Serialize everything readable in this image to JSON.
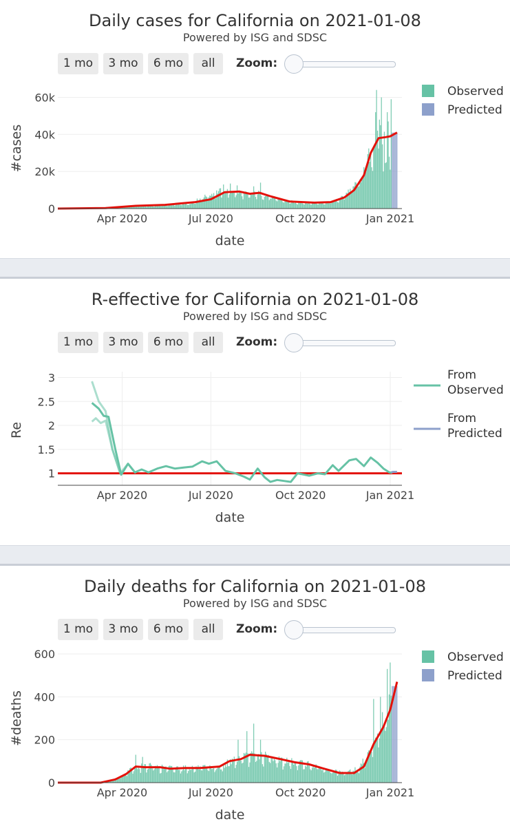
{
  "buttons": [
    "1 mo",
    "3 mo",
    "6 mo",
    "all"
  ],
  "zoom_label": "Zoom:",
  "colors": {
    "observed": "#66c2a5",
    "predicted": "#8da0cb",
    "trend": "#e3120b",
    "reference": "#e3120b"
  },
  "chart_data": [
    {
      "type": "bar",
      "title": "Daily cases for California on 2021-01-08",
      "subtitle": "Powered by ISG and SDSC",
      "xlabel": "date",
      "ylabel": "#cases",
      "xlim": [
        "2020-01-26",
        "2021-01-13"
      ],
      "ylim": [
        0,
        65000
      ],
      "x_ticks": [
        "2020-04-01",
        "2020-07-01",
        "2020-10-01",
        "2021-01-01"
      ],
      "x_tick_labels": [
        "Apr 2020",
        "Jul 2020",
        "Oct 2020",
        "Jan 2021"
      ],
      "y_ticks": [
        0,
        20000,
        40000,
        60000
      ],
      "y_tick_labels": [
        "0",
        "20k",
        "40k",
        "60k"
      ],
      "grid": true,
      "legend": {
        "placement": "top-right",
        "entries": [
          {
            "name": "Observed"
          },
          {
            "name": "Predicted"
          }
        ]
      },
      "series": [
        {
          "name": "Observed",
          "kind": "bar",
          "start_date": "2020-01-26",
          "end_date": "2021-01-08",
          "anchors": [
            [
              "2020-01-26",
              0
            ],
            [
              "2020-03-15",
              200
            ],
            [
              "2020-04-10",
              1200
            ],
            [
              "2020-05-15",
              1800
            ],
            [
              "2020-06-10",
              3000
            ],
            [
              "2020-06-25",
              6500
            ],
            [
              "2020-07-10",
              9500
            ],
            [
              "2020-07-25",
              9500
            ],
            [
              "2020-08-10",
              7500
            ],
            [
              "2020-08-20",
              8500
            ],
            [
              "2020-09-05",
              5500
            ],
            [
              "2020-09-25",
              3500
            ],
            [
              "2020-10-15",
              3200
            ],
            [
              "2020-10-31",
              3500
            ],
            [
              "2020-11-10",
              5000
            ],
            [
              "2020-11-20",
              10000
            ],
            [
              "2020-12-01",
              15000
            ],
            [
              "2020-12-10",
              28000
            ],
            [
              "2020-12-18",
              38000
            ],
            [
              "2020-12-28",
              40000
            ],
            [
              "2021-01-08",
              40000
            ]
          ],
          "spikes": [
            [
              "2020-07-14",
              13000
            ],
            [
              "2020-07-21",
              13500
            ],
            [
              "2020-07-28",
              12500
            ],
            [
              "2020-08-14",
              12000
            ],
            [
              "2020-08-21",
              14000
            ],
            [
              "2020-12-17",
              52000
            ],
            [
              "2020-12-18",
              64000
            ],
            [
              "2020-12-21",
              48000
            ],
            [
              "2020-12-22",
              45000
            ],
            [
              "2020-12-23",
              60000
            ],
            [
              "2020-12-29",
              52000
            ],
            [
              "2020-12-30",
              47000
            ],
            [
              "2021-01-02",
              59000
            ],
            [
              "2021-01-06",
              44000
            ]
          ],
          "dips": [
            [
              "2020-12-25",
              20000
            ],
            [
              "2020-12-31",
              28000
            ],
            [
              "2021-01-01",
              21000
            ]
          ]
        },
        {
          "name": "Predicted",
          "kind": "bar",
          "start_date": "2021-01-03",
          "end_date": "2021-01-08",
          "value": 41000
        },
        {
          "name": "Trend",
          "kind": "line",
          "points": [
            [
              "2020-01-26",
              0
            ],
            [
              "2020-03-15",
              300
            ],
            [
              "2020-04-15",
              1500
            ],
            [
              "2020-05-15",
              2000
            ],
            [
              "2020-06-15",
              3500
            ],
            [
              "2020-07-01",
              5000
            ],
            [
              "2020-07-15",
              8800
            ],
            [
              "2020-07-30",
              9200
            ],
            [
              "2020-08-10",
              8000
            ],
            [
              "2020-08-20",
              8500
            ],
            [
              "2020-09-01",
              6500
            ],
            [
              "2020-09-20",
              3800
            ],
            [
              "2020-10-15",
              3200
            ],
            [
              "2020-11-01",
              3500
            ],
            [
              "2020-11-15",
              6000
            ],
            [
              "2020-11-25",
              10000
            ],
            [
              "2020-12-05",
              18000
            ],
            [
              "2020-12-12",
              30000
            ],
            [
              "2020-12-20",
              38000
            ],
            [
              "2020-12-27",
              38500
            ],
            [
              "2021-01-01",
              39000
            ],
            [
              "2021-01-08",
              41000
            ]
          ]
        }
      ]
    },
    {
      "type": "line",
      "title": "R-effective for California on 2021-01-08",
      "subtitle": "Powered by ISG and SDSC",
      "xlabel": "date",
      "ylabel": "Re",
      "xlim": [
        "2020-01-26",
        "2021-01-13"
      ],
      "ylim": [
        0.75,
        3.05
      ],
      "x_ticks": [
        "2020-04-01",
        "2020-07-01",
        "2020-10-01",
        "2021-01-01"
      ],
      "x_tick_labels": [
        "Apr 2020",
        "Jul 2020",
        "Oct 2020",
        "Jan 2021"
      ],
      "y_ticks": [
        1,
        1.5,
        2,
        2.5,
        3
      ],
      "y_tick_labels": [
        "1",
        "1.5",
        "2",
        "2.5",
        "3"
      ],
      "grid": true,
      "reference_line": 1,
      "legend": {
        "placement": "top-right",
        "entries": [
          {
            "name": "From Observed",
            "lines": [
              "From",
              "Observed"
            ]
          },
          {
            "name": "From Predicted",
            "lines": [
              "From",
              "Predicted"
            ]
          }
        ]
      },
      "series": [
        {
          "name": "From Observed (upper)",
          "opacity": 0.55,
          "points": [
            [
              "2020-03-01",
              2.92
            ],
            [
              "2020-03-08",
              2.5
            ],
            [
              "2020-03-15",
              2.3
            ],
            [
              "2020-03-22",
              1.5
            ],
            [
              "2020-03-30",
              1.0
            ],
            [
              "2020-04-07",
              1.2
            ],
            [
              "2020-04-15",
              1.0
            ]
          ]
        },
        {
          "name": "From Observed (lower)",
          "opacity": 0.55,
          "points": [
            [
              "2020-03-01",
              2.08
            ],
            [
              "2020-03-05",
              2.15
            ],
            [
              "2020-03-10",
              2.05
            ],
            [
              "2020-03-15",
              2.1
            ],
            [
              "2020-03-22",
              1.5
            ],
            [
              "2020-03-30",
              1.0
            ]
          ]
        },
        {
          "name": "From Observed",
          "opacity": 1,
          "points": [
            [
              "2020-03-01",
              2.47
            ],
            [
              "2020-03-08",
              2.35
            ],
            [
              "2020-03-13",
              2.2
            ],
            [
              "2020-03-18",
              2.18
            ],
            [
              "2020-03-25",
              1.5
            ],
            [
              "2020-03-31",
              0.97
            ],
            [
              "2020-04-07",
              1.2
            ],
            [
              "2020-04-14",
              1.02
            ],
            [
              "2020-04-21",
              1.08
            ],
            [
              "2020-04-28",
              1.02
            ],
            [
              "2020-05-07",
              1.1
            ],
            [
              "2020-05-16",
              1.15
            ],
            [
              "2020-05-25",
              1.1
            ],
            [
              "2020-06-03",
              1.12
            ],
            [
              "2020-06-12",
              1.14
            ],
            [
              "2020-06-22",
              1.25
            ],
            [
              "2020-06-29",
              1.2
            ],
            [
              "2020-07-07",
              1.25
            ],
            [
              "2020-07-16",
              1.05
            ],
            [
              "2020-07-26",
              1.0
            ],
            [
              "2020-08-04",
              0.93
            ],
            [
              "2020-08-10",
              0.87
            ],
            [
              "2020-08-18",
              1.1
            ],
            [
              "2020-08-25",
              0.92
            ],
            [
              "2020-08-31",
              0.82
            ],
            [
              "2020-09-07",
              0.86
            ],
            [
              "2020-09-14",
              0.84
            ],
            [
              "2020-09-21",
              0.82
            ],
            [
              "2020-09-28",
              1.0
            ],
            [
              "2020-10-05",
              0.97
            ],
            [
              "2020-10-10",
              0.95
            ],
            [
              "2020-10-19",
              1.0
            ],
            [
              "2020-10-26",
              0.98
            ],
            [
              "2020-11-03",
              1.17
            ],
            [
              "2020-11-09",
              1.05
            ],
            [
              "2020-11-20",
              1.27
            ],
            [
              "2020-11-27",
              1.3
            ],
            [
              "2020-12-05",
              1.15
            ],
            [
              "2020-12-12",
              1.33
            ],
            [
              "2020-12-19",
              1.22
            ],
            [
              "2020-12-25",
              1.1
            ],
            [
              "2020-12-31",
              1.02
            ],
            [
              "2021-01-03",
              1.01
            ]
          ]
        },
        {
          "name": "From Predicted",
          "opacity": 1,
          "points": [
            [
              "2021-01-02",
              1.02
            ],
            [
              "2021-01-04",
              1.03
            ],
            [
              "2021-01-06",
              1.03
            ],
            [
              "2021-01-08",
              1.03
            ]
          ]
        }
      ]
    },
    {
      "type": "bar",
      "title": "Daily deaths for California on 2021-01-08",
      "subtitle": "Powered by ISG and SDSC",
      "xlabel": "date",
      "ylabel": "#deaths",
      "xlim": [
        "2020-01-26",
        "2021-01-13"
      ],
      "ylim": [
        0,
        600
      ],
      "x_ticks": [
        "2020-04-01",
        "2020-07-01",
        "2020-10-01",
        "2021-01-01"
      ],
      "x_tick_labels": [
        "Apr 2020",
        "Jul 2020",
        "Oct 2020",
        "Jan 2021"
      ],
      "y_ticks": [
        0,
        200,
        400,
        600
      ],
      "y_tick_labels": [
        "0",
        "200",
        "400",
        "600"
      ],
      "grid": true,
      "legend": {
        "placement": "top-right",
        "entries": [
          {
            "name": "Observed"
          },
          {
            "name": "Predicted"
          }
        ]
      },
      "series": [
        {
          "name": "Observed",
          "kind": "bar",
          "start_date": "2020-01-26",
          "end_date": "2021-01-08",
          "anchors": [
            [
              "2020-01-26",
              0
            ],
            [
              "2020-03-10",
              0
            ],
            [
              "2020-03-20",
              10
            ],
            [
              "2020-04-01",
              30
            ],
            [
              "2020-04-12",
              70
            ],
            [
              "2020-04-25",
              80
            ],
            [
              "2020-05-15",
              70
            ],
            [
              "2020-06-01",
              70
            ],
            [
              "2020-06-20",
              70
            ],
            [
              "2020-07-10",
              70
            ],
            [
              "2020-07-25",
              110
            ],
            [
              "2020-08-05",
              120
            ],
            [
              "2020-08-15",
              130
            ],
            [
              "2020-09-01",
              120
            ],
            [
              "2020-09-15",
              100
            ],
            [
              "2020-10-01",
              95
            ],
            [
              "2020-10-15",
              80
            ],
            [
              "2020-11-01",
              55
            ],
            [
              "2020-11-15",
              45
            ],
            [
              "2020-12-01",
              70
            ],
            [
              "2020-12-10",
              150
            ],
            [
              "2020-12-20",
              250
            ],
            [
              "2020-12-28",
              320
            ],
            [
              "2021-01-08",
              430
            ]
          ],
          "spikes": [
            [
              "2020-04-15",
              130
            ],
            [
              "2020-04-22",
              120
            ],
            [
              "2020-07-29",
              200
            ],
            [
              "2020-08-07",
              240
            ],
            [
              "2020-08-14",
              275
            ],
            [
              "2020-08-21",
              200
            ],
            [
              "2020-12-15",
              390
            ],
            [
              "2020-12-22",
              400
            ],
            [
              "2020-12-29",
              530
            ],
            [
              "2021-01-01",
              560
            ],
            [
              "2021-01-05",
              540
            ]
          ],
          "dips": []
        },
        {
          "name": "Predicted",
          "kind": "bar",
          "start_date": "2021-01-03",
          "end_date": "2021-01-08",
          "value": 450
        },
        {
          "name": "Trend",
          "kind": "line",
          "points": [
            [
              "2020-01-26",
              0
            ],
            [
              "2020-03-10",
              0
            ],
            [
              "2020-03-25",
              15
            ],
            [
              "2020-04-05",
              40
            ],
            [
              "2020-04-15",
              75
            ],
            [
              "2020-04-25",
              72
            ],
            [
              "2020-05-10",
              72
            ],
            [
              "2020-05-20",
              65
            ],
            [
              "2020-06-05",
              68
            ],
            [
              "2020-06-20",
              68
            ],
            [
              "2020-07-10",
              75
            ],
            [
              "2020-07-20",
              100
            ],
            [
              "2020-08-01",
              110
            ],
            [
              "2020-08-10",
              130
            ],
            [
              "2020-08-25",
              125
            ],
            [
              "2020-09-10",
              110
            ],
            [
              "2020-09-25",
              95
            ],
            [
              "2020-10-10",
              85
            ],
            [
              "2020-10-25",
              65
            ],
            [
              "2020-11-10",
              45
            ],
            [
              "2020-11-25",
              45
            ],
            [
              "2020-12-05",
              75
            ],
            [
              "2020-12-15",
              180
            ],
            [
              "2020-12-25",
              260
            ],
            [
              "2021-01-01",
              340
            ],
            [
              "2021-01-08",
              470
            ]
          ]
        }
      ]
    }
  ]
}
